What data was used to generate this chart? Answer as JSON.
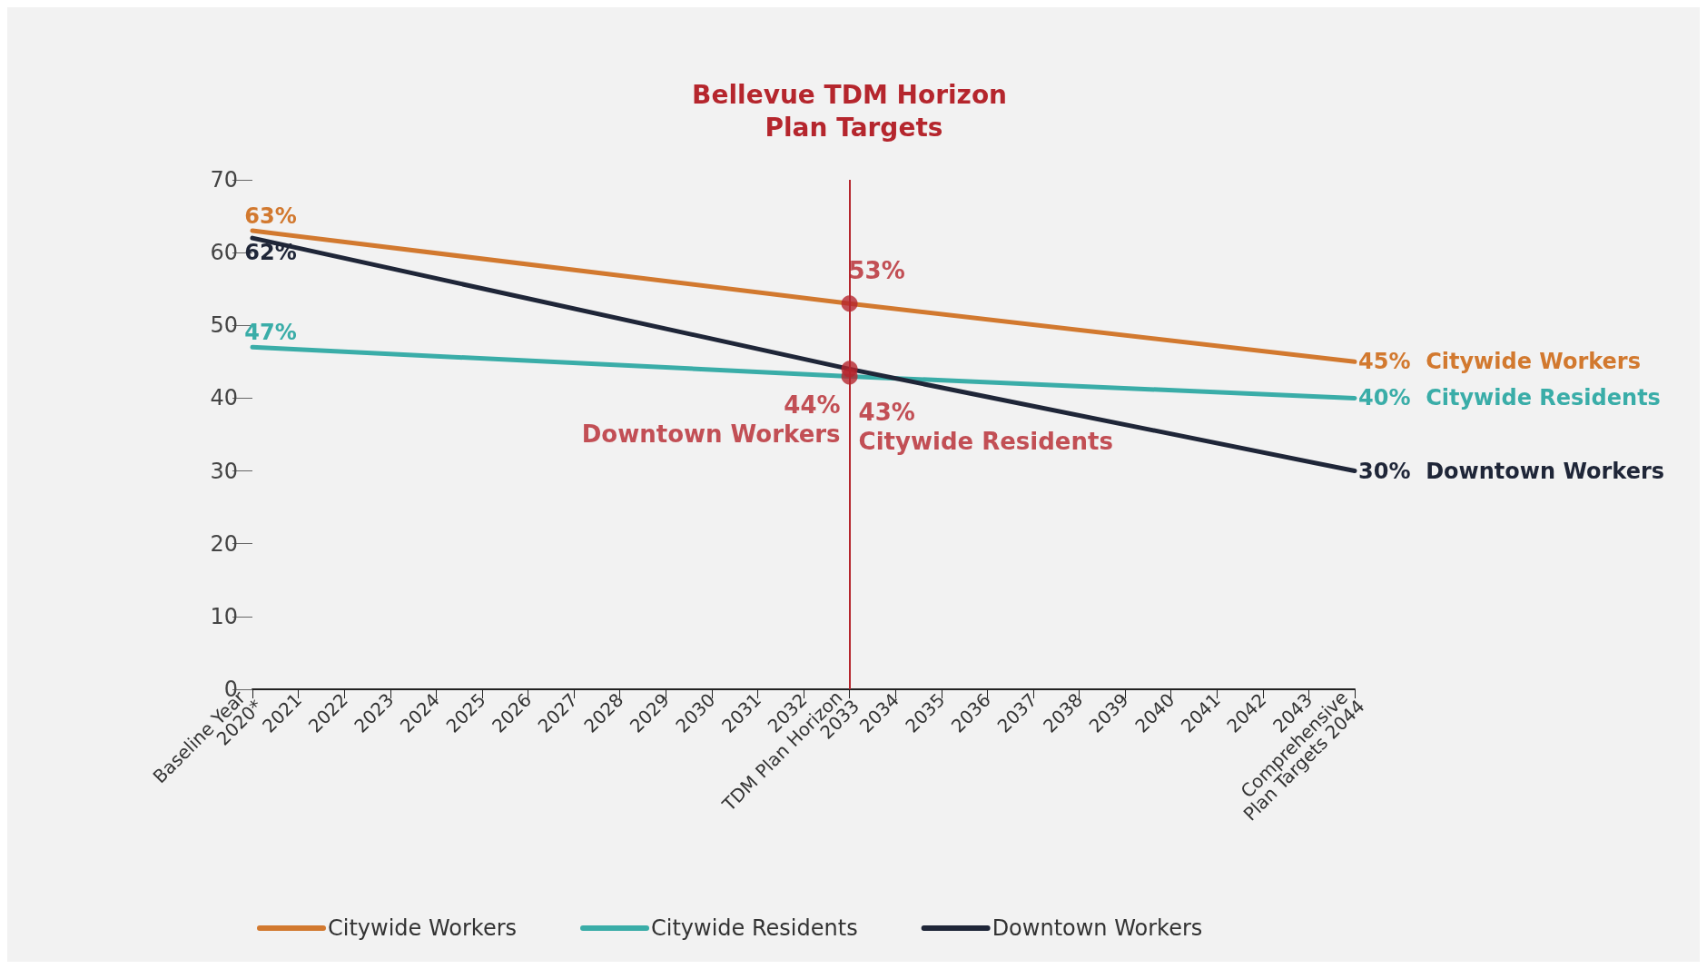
{
  "chart_data": {
    "type": "line",
    "categories": [
      "Baseline Year 2020*",
      "2021",
      "2022",
      "2023",
      "2024",
      "2025",
      "2026",
      "2027",
      "2028",
      "2029",
      "2030",
      "2031",
      "2032",
      "TDM Plan Horizon 2033",
      "2034",
      "2035",
      "2036",
      "2037",
      "2038",
      "2039",
      "2040",
      "2041",
      "2042",
      "2043",
      "Comprehensive Plan Targets 2044"
    ],
    "series": [
      {
        "name": "Citywide Workers",
        "color": "#d2792f",
        "x": [
          "Baseline Year 2020*",
          "TDM Plan Horizon 2033",
          "Comprehensive Plan Targets 2044"
        ],
        "values": [
          63,
          53,
          45
        ],
        "value_labels": [
          "63%",
          null,
          "45%"
        ]
      },
      {
        "name": "Citywide Residents",
        "color": "#3aada8",
        "x": [
          "Baseline Year 2020*",
          "TDM Plan Horizon 2033",
          "Comprehensive Plan Targets 2044"
        ],
        "values": [
          47,
          43,
          40
        ],
        "value_labels": [
          "47%",
          null,
          "40%"
        ]
      },
      {
        "name": "Downtown Workers",
        "color": "#1f2638",
        "x": [
          "Baseline Year 2020*",
          "TDM Plan Horizon 2033",
          "Comprehensive Plan Targets 2044"
        ],
        "values": [
          62,
          44,
          30
        ],
        "value_labels": [
          "62%",
          null,
          "30%"
        ]
      }
    ],
    "ylim": [
      0,
      70
    ],
    "yticks": [
      0,
      10,
      20,
      30,
      40,
      50,
      60,
      70
    ],
    "ref_lines": [
      {
        "axis": "x",
        "value": "TDM Plan Horizon 2033",
        "label": "Bellevue TDM Horizon Plan Targets",
        "color": "#b5262d"
      }
    ],
    "annotations": [
      {
        "text": "53%",
        "x": "TDM Plan Horizon 2033",
        "y": 53
      },
      {
        "text": "44%\nDowntown Workers",
        "x": "TDM Plan Horizon 2033",
        "y": 44
      },
      {
        "text": "43%\nCitywide Residents",
        "x": "TDM Plan Horizon 2033",
        "y": 43
      }
    ],
    "grid": false,
    "legend": "bottom",
    "marker": "none",
    "line_style": "solid"
  }
}
